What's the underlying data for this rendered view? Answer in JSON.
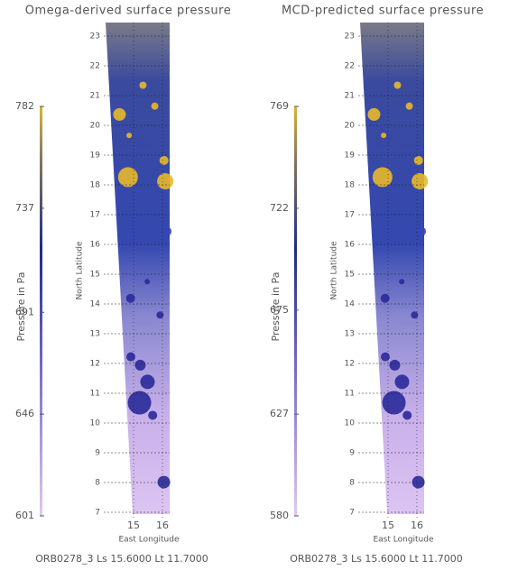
{
  "panels": [
    {
      "title": "Omega-derived surface pressure",
      "colorbar": {
        "label": "Pressure in Pa",
        "ticks": [
          601,
          646,
          691,
          737,
          782
        ]
      },
      "y_axis": {
        "label": "North Latitude",
        "ticks": [
          7,
          8,
          9,
          10,
          11,
          12,
          13,
          14,
          15,
          16,
          17,
          18,
          19,
          20,
          21,
          22,
          23
        ]
      },
      "x_axis": {
        "label": "East Longitude",
        "ticks": [
          15,
          16
        ]
      },
      "footer": "ORB0278_3 Ls 15.6000 Lt 11.7000"
    },
    {
      "title": "MCD-predicted surface pressure",
      "colorbar": {
        "label": "Pressure in Pa",
        "ticks": [
          580,
          627,
          675,
          722,
          769
        ]
      },
      "y_axis": {
        "label": "North Latitude",
        "ticks": [
          7,
          8,
          9,
          10,
          11,
          12,
          13,
          14,
          15,
          16,
          17,
          18,
          19,
          20,
          21,
          22,
          23
        ]
      },
      "x_axis": {
        "label": "East Longitude",
        "ticks": [
          15,
          16
        ]
      },
      "footer": "ORB0278_3 Ls 15.6000 Lt 11.7000"
    }
  ]
}
